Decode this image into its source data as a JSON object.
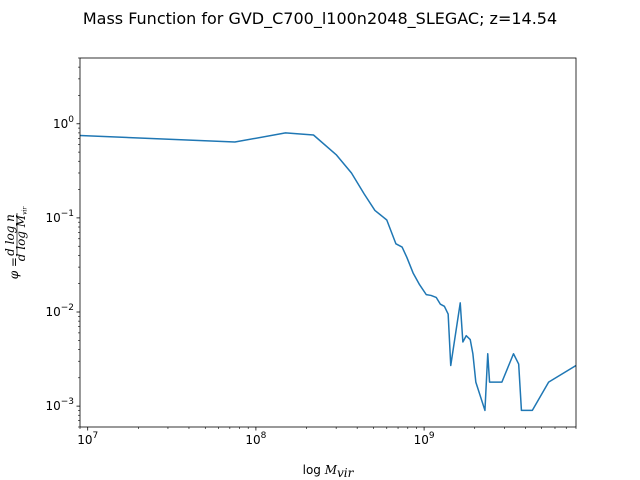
{
  "chart_data": {
    "type": "line",
    "title": "Mass Function for GVD_C700_l100n2048_SLEGAC; z=14.54",
    "xlabel": "log M_vir",
    "ylabel": "φ = dlog n / dlog M_vir",
    "xscale": "log",
    "yscale": "log",
    "xlim": [
      9000000,
      8000000000
    ],
    "ylim": [
      0.0006,
      5
    ],
    "grid": false,
    "x_major_ticks": [
      {
        "value": 10000000,
        "base": "10",
        "exp": "7"
      },
      {
        "value": 100000000,
        "base": "10",
        "exp": "8"
      },
      {
        "value": 1000000000,
        "base": "10",
        "exp": "9"
      }
    ],
    "y_major_ticks": [
      {
        "value": 0.001,
        "base": "10",
        "exp": "−3"
      },
      {
        "value": 0.01,
        "base": "10",
        "exp": "−2"
      },
      {
        "value": 0.1,
        "base": "10",
        "exp": "−1"
      },
      {
        "value": 1,
        "base": "10",
        "exp": "0"
      }
    ],
    "series": [
      {
        "color": "#1f77b4",
        "x": [
          9000000,
          75000000,
          150000000,
          220000000,
          300000000,
          370000000,
          440000000,
          510000000,
          600000000,
          680000000,
          740000000,
          790000000,
          860000000,
          940000000,
          1030000000,
          1100000000,
          1180000000,
          1250000000,
          1320000000,
          1390000000,
          1440000000,
          1640000000,
          1700000000,
          1780000000,
          1880000000,
          1950000000,
          2030000000,
          2300000000,
          2390000000,
          2450000000,
          2900000000,
          3400000000,
          3650000000,
          3790000000,
          4400000000,
          5500000000,
          8000000000
        ],
        "y": [
          0.75,
          0.64,
          0.8,
          0.76,
          0.47,
          0.3,
          0.18,
          0.12,
          0.095,
          0.053,
          0.049,
          0.038,
          0.026,
          0.0195,
          0.0153,
          0.015,
          0.0143,
          0.0121,
          0.0115,
          0.0095,
          0.0027,
          0.0125,
          0.0048,
          0.0056,
          0.0051,
          0.0036,
          0.0018,
          0.0009,
          0.0036,
          0.0018,
          0.0018,
          0.0036,
          0.0028,
          0.0009,
          0.0009,
          0.0018,
          0.0027
        ]
      }
    ]
  }
}
